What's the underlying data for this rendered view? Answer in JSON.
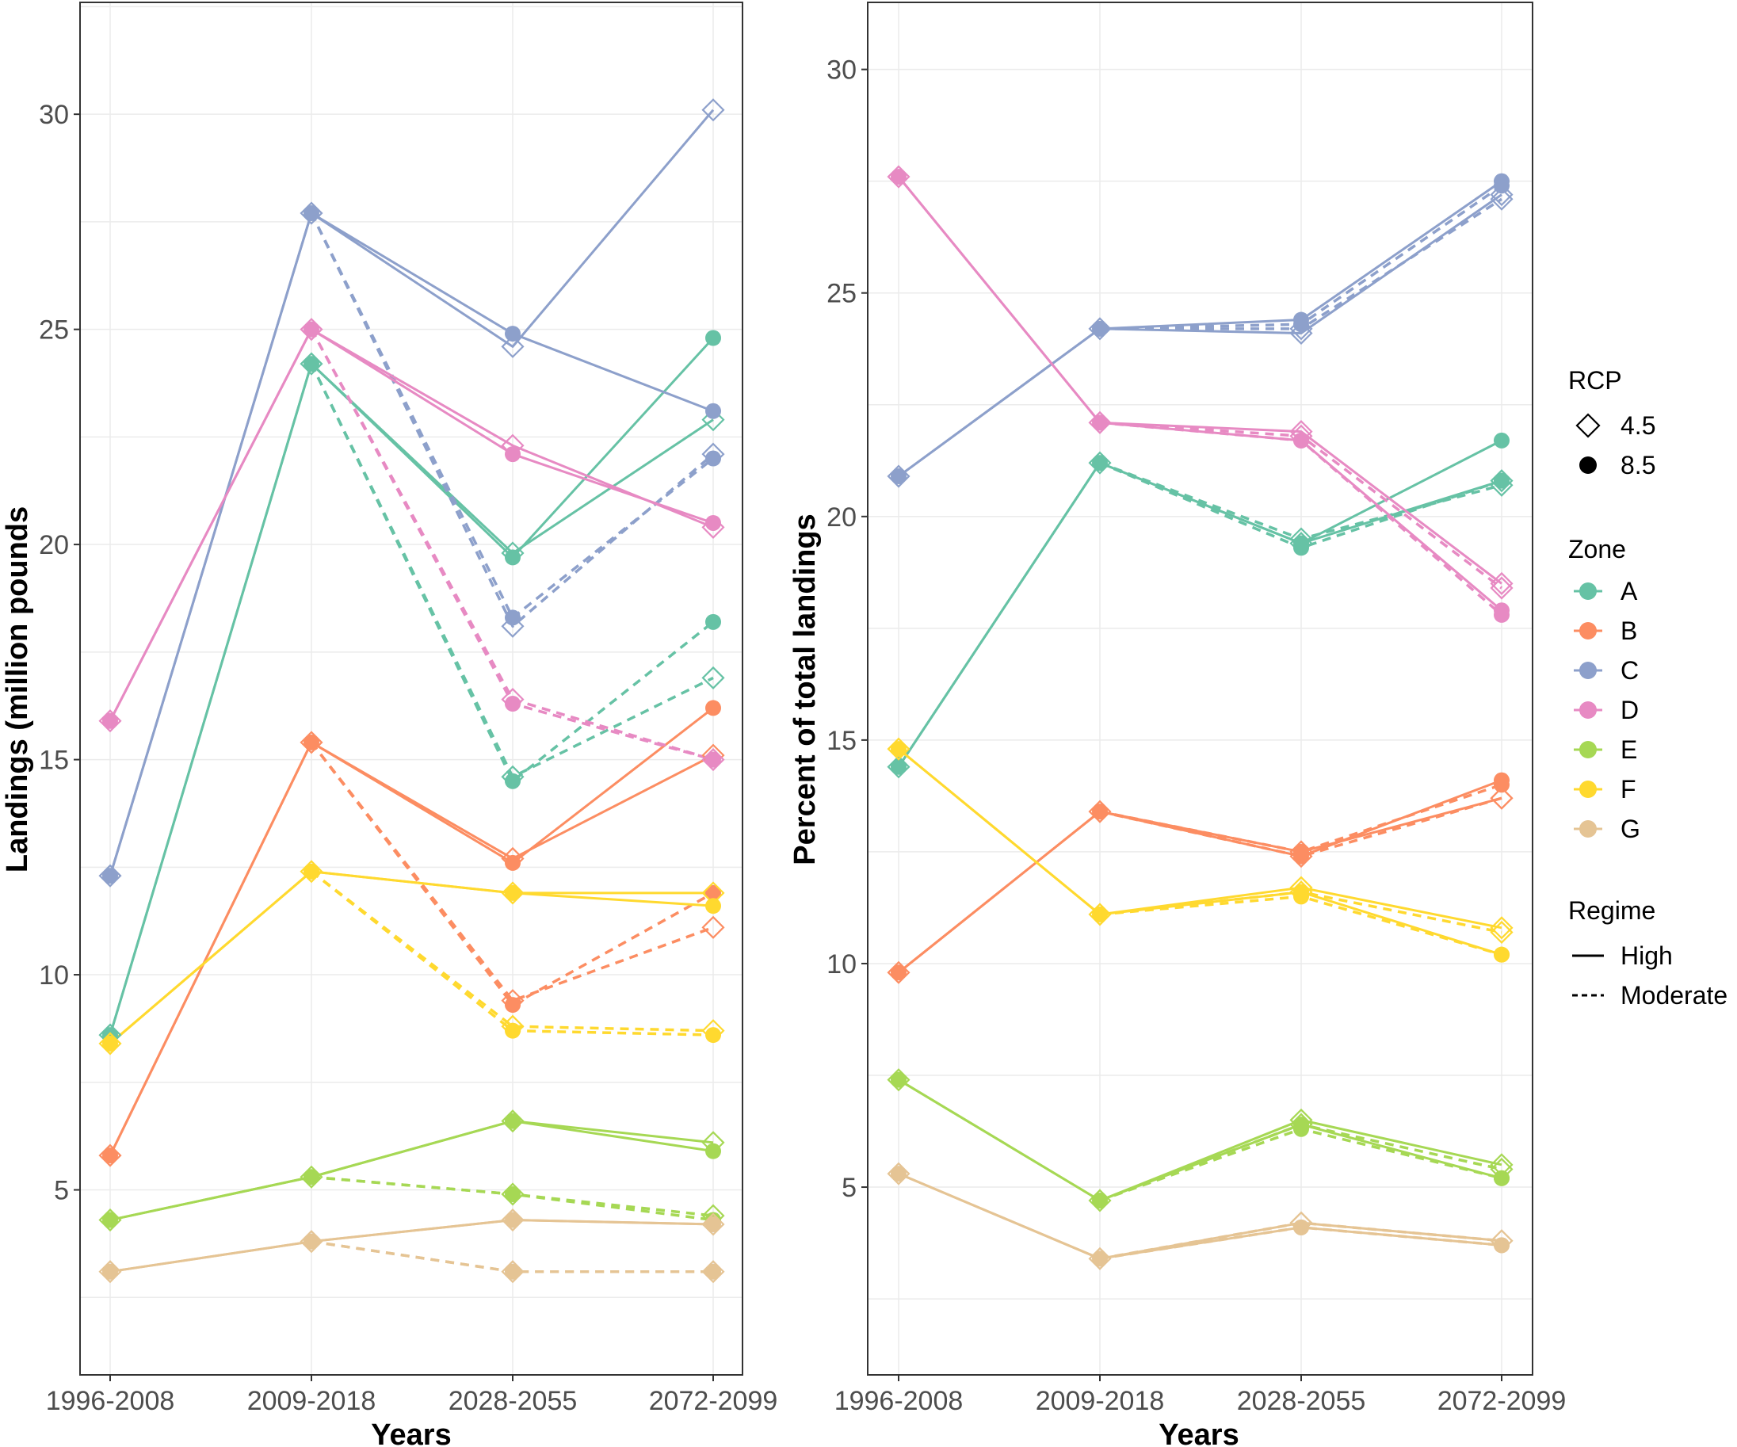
{
  "chart_data": [
    {
      "type": "line",
      "xlabel": "Years",
      "ylabel": "Landings (million pounds",
      "categories": [
        "1996-2008",
        "2009-2018",
        "2028-2055",
        "2072-2099"
      ],
      "ylim": [
        0.7,
        32.6
      ],
      "yticks": [
        5,
        10,
        15,
        20,
        25,
        30
      ],
      "grid": true,
      "series": [
        {
          "zone": "A",
          "rcp": "4.5",
          "regime": "High",
          "values": [
            8.6,
            24.2,
            19.8,
            22.9
          ]
        },
        {
          "zone": "A",
          "rcp": "8.5",
          "regime": "High",
          "values": [
            8.6,
            24.2,
            19.7,
            24.8
          ]
        },
        {
          "zone": "A",
          "rcp": "4.5",
          "regime": "Moderate",
          "values": [
            null,
            24.2,
            14.6,
            16.9
          ]
        },
        {
          "zone": "A",
          "rcp": "8.5",
          "regime": "Moderate",
          "values": [
            null,
            24.2,
            14.5,
            18.2
          ]
        },
        {
          "zone": "B",
          "rcp": "4.5",
          "regime": "High",
          "values": [
            5.8,
            15.4,
            12.7,
            15.1
          ]
        },
        {
          "zone": "B",
          "rcp": "8.5",
          "regime": "High",
          "values": [
            5.8,
            15.4,
            12.6,
            16.2
          ]
        },
        {
          "zone": "B",
          "rcp": "4.5",
          "regime": "Moderate",
          "values": [
            null,
            15.4,
            9.4,
            11.1
          ]
        },
        {
          "zone": "B",
          "rcp": "8.5",
          "regime": "Moderate",
          "values": [
            null,
            15.4,
            9.3,
            11.9
          ]
        },
        {
          "zone": "C",
          "rcp": "4.5",
          "regime": "High",
          "values": [
            12.3,
            27.7,
            24.6,
            30.1
          ]
        },
        {
          "zone": "C",
          "rcp": "8.5",
          "regime": "High",
          "values": [
            12.3,
            27.7,
            24.9,
            23.1
          ]
        },
        {
          "zone": "C",
          "rcp": "4.5",
          "regime": "Moderate",
          "values": [
            null,
            27.7,
            18.1,
            22.1
          ]
        },
        {
          "zone": "C",
          "rcp": "8.5",
          "regime": "Moderate",
          "values": [
            null,
            27.7,
            18.3,
            22.0
          ]
        },
        {
          "zone": "D",
          "rcp": "4.5",
          "regime": "High",
          "values": [
            15.9,
            25.0,
            22.3,
            20.4
          ]
        },
        {
          "zone": "D",
          "rcp": "8.5",
          "regime": "High",
          "values": [
            15.9,
            25.0,
            22.1,
            20.5
          ]
        },
        {
          "zone": "D",
          "rcp": "4.5",
          "regime": "Moderate",
          "values": [
            null,
            25.0,
            16.4,
            15.0
          ]
        },
        {
          "zone": "D",
          "rcp": "8.5",
          "regime": "Moderate",
          "values": [
            null,
            25.0,
            16.3,
            15.0
          ]
        },
        {
          "zone": "E",
          "rcp": "4.5",
          "regime": "High",
          "values": [
            4.3,
            5.3,
            6.6,
            6.1
          ]
        },
        {
          "zone": "E",
          "rcp": "8.5",
          "regime": "High",
          "values": [
            4.3,
            5.3,
            6.6,
            5.9
          ]
        },
        {
          "zone": "E",
          "rcp": "4.5",
          "regime": "Moderate",
          "values": [
            null,
            5.3,
            4.9,
            4.4
          ]
        },
        {
          "zone": "E",
          "rcp": "8.5",
          "regime": "Moderate",
          "values": [
            null,
            5.3,
            4.9,
            4.3
          ]
        },
        {
          "zone": "F",
          "rcp": "4.5",
          "regime": "High",
          "values": [
            8.4,
            12.4,
            11.9,
            11.9
          ]
        },
        {
          "zone": "F",
          "rcp": "8.5",
          "regime": "High",
          "values": [
            8.4,
            12.4,
            11.9,
            11.6
          ]
        },
        {
          "zone": "F",
          "rcp": "4.5",
          "regime": "Moderate",
          "values": [
            null,
            12.4,
            8.8,
            8.7
          ]
        },
        {
          "zone": "F",
          "rcp": "8.5",
          "regime": "Moderate",
          "values": [
            null,
            12.4,
            8.7,
            8.6
          ]
        },
        {
          "zone": "G",
          "rcp": "4.5",
          "regime": "High",
          "values": [
            3.1,
            3.8,
            4.3,
            4.2
          ]
        },
        {
          "zone": "G",
          "rcp": "8.5",
          "regime": "High",
          "values": [
            3.1,
            3.8,
            4.3,
            4.2
          ]
        },
        {
          "zone": "G",
          "rcp": "4.5",
          "regime": "Moderate",
          "values": [
            null,
            3.8,
            3.1,
            3.1
          ]
        },
        {
          "zone": "G",
          "rcp": "8.5",
          "regime": "Moderate",
          "values": [
            null,
            3.8,
            3.1,
            3.1
          ]
        }
      ]
    },
    {
      "type": "line",
      "xlabel": "Years",
      "ylabel": "Percent of total landings",
      "categories": [
        "1996-2008",
        "2009-2018",
        "2028-2055",
        "2072-2099"
      ],
      "ylim": [
        0.8,
        31.5
      ],
      "yticks": [
        5,
        10,
        15,
        20,
        25,
        30
      ],
      "grid": true,
      "series": [
        {
          "zone": "A",
          "rcp": "4.5",
          "regime": "High",
          "values": [
            14.4,
            21.2,
            19.4,
            20.8
          ]
        },
        {
          "zone": "A",
          "rcp": "8.5",
          "regime": "High",
          "values": [
            14.4,
            21.2,
            19.4,
            21.7
          ]
        },
        {
          "zone": "A",
          "rcp": "4.5",
          "regime": "Moderate",
          "values": [
            null,
            21.2,
            19.5,
            20.7
          ]
        },
        {
          "zone": "A",
          "rcp": "8.5",
          "regime": "Moderate",
          "values": [
            null,
            21.2,
            19.3,
            20.8
          ]
        },
        {
          "zone": "B",
          "rcp": "4.5",
          "regime": "High",
          "values": [
            9.8,
            13.4,
            12.5,
            13.7
          ]
        },
        {
          "zone": "B",
          "rcp": "8.5",
          "regime": "High",
          "values": [
            9.8,
            13.4,
            12.4,
            14.1
          ]
        },
        {
          "zone": "B",
          "rcp": "4.5",
          "regime": "Moderate",
          "values": [
            null,
            13.4,
            12.4,
            13.7
          ]
        },
        {
          "zone": "B",
          "rcp": "8.5",
          "regime": "Moderate",
          "values": [
            null,
            13.4,
            12.5,
            14.0
          ]
        },
        {
          "zone": "C",
          "rcp": "4.5",
          "regime": "High",
          "values": [
            20.9,
            24.2,
            24.1,
            27.2
          ]
        },
        {
          "zone": "C",
          "rcp": "8.5",
          "regime": "High",
          "values": [
            20.9,
            24.2,
            24.4,
            27.5
          ]
        },
        {
          "zone": "C",
          "rcp": "4.5",
          "regime": "Moderate",
          "values": [
            null,
            24.2,
            24.2,
            27.1
          ]
        },
        {
          "zone": "C",
          "rcp": "8.5",
          "regime": "Moderate",
          "values": [
            null,
            24.2,
            24.3,
            27.4
          ]
        },
        {
          "zone": "D",
          "rcp": "4.5",
          "regime": "High",
          "values": [
            27.6,
            22.1,
            21.9,
            18.5
          ]
        },
        {
          "zone": "D",
          "rcp": "8.5",
          "regime": "High",
          "values": [
            27.6,
            22.1,
            21.7,
            17.9
          ]
        },
        {
          "zone": "D",
          "rcp": "4.5",
          "regime": "Moderate",
          "values": [
            null,
            22.1,
            21.8,
            18.4
          ]
        },
        {
          "zone": "D",
          "rcp": "8.5",
          "regime": "Moderate",
          "values": [
            null,
            22.1,
            21.7,
            17.8
          ]
        },
        {
          "zone": "E",
          "rcp": "4.5",
          "regime": "High",
          "values": [
            7.4,
            4.7,
            6.5,
            5.5
          ]
        },
        {
          "zone": "E",
          "rcp": "8.5",
          "regime": "High",
          "values": [
            7.4,
            4.7,
            6.4,
            5.2
          ]
        },
        {
          "zone": "E",
          "rcp": "4.5",
          "regime": "Moderate",
          "values": [
            null,
            4.7,
            6.4,
            5.4
          ]
        },
        {
          "zone": "E",
          "rcp": "8.5",
          "regime": "Moderate",
          "values": [
            null,
            4.7,
            6.3,
            5.2
          ]
        },
        {
          "zone": "F",
          "rcp": "4.5",
          "regime": "High",
          "values": [
            14.8,
            11.1,
            11.7,
            10.8
          ]
        },
        {
          "zone": "F",
          "rcp": "8.5",
          "regime": "High",
          "values": [
            14.8,
            11.1,
            11.6,
            10.2
          ]
        },
        {
          "zone": "F",
          "rcp": "4.5",
          "regime": "Moderate",
          "values": [
            null,
            11.1,
            11.6,
            10.7
          ]
        },
        {
          "zone": "F",
          "rcp": "8.5",
          "regime": "Moderate",
          "values": [
            null,
            11.1,
            11.5,
            10.2
          ]
        },
        {
          "zone": "G",
          "rcp": "4.5",
          "regime": "High",
          "values": [
            5.3,
            3.4,
            4.2,
            3.8
          ]
        },
        {
          "zone": "G",
          "rcp": "8.5",
          "regime": "High",
          "values": [
            5.3,
            3.4,
            4.1,
            3.7
          ]
        },
        {
          "zone": "G",
          "rcp": "4.5",
          "regime": "Moderate",
          "values": [
            null,
            3.4,
            4.2,
            3.8
          ]
        },
        {
          "zone": "G",
          "rcp": "8.5",
          "regime": "Moderate",
          "values": [
            null,
            3.4,
            4.1,
            3.7
          ]
        }
      ]
    }
  ],
  "zone_colors": {
    "A": "#66c2a5",
    "B": "#fc8d62",
    "C": "#8da0cb",
    "D": "#e78ac3",
    "E": "#a6d854",
    "F": "#ffd92f",
    "G": "#e5c494"
  },
  "legend": {
    "rcp_title": "RCP",
    "rcp_items": [
      {
        "label": "4.5",
        "shape": "open-diamond"
      },
      {
        "label": "8.5",
        "shape": "filled-circle"
      }
    ],
    "zone_title": "Zone",
    "zone_items": [
      "A",
      "B",
      "C",
      "D",
      "E",
      "F",
      "G"
    ],
    "regime_title": "Regime",
    "regime_items": [
      {
        "label": "High",
        "line": "solid"
      },
      {
        "label": "Moderate",
        "line": "dashed"
      }
    ]
  }
}
